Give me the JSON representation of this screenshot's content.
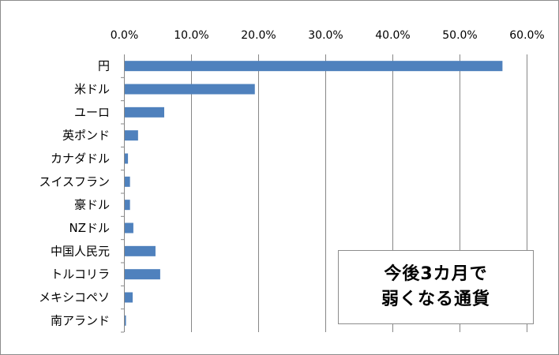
{
  "colors": {
    "bar": "#4f81bd",
    "grid": "#878787",
    "axis": "#878787"
  },
  "chart_data": {
    "type": "bar",
    "orientation": "horizontal",
    "title_lines": [
      "今後3カ月で",
      "弱くなる通貨"
    ],
    "xlabel": "",
    "ylabel": "",
    "xlim": [
      0,
      60
    ],
    "x_ticks": [
      "0.0%",
      "10.0%",
      "20.0%",
      "30.0%",
      "40.0%",
      "50.0%",
      "60.0%"
    ],
    "x_axis_position": "top",
    "grid": true,
    "legend": "none",
    "categories": [
      "円",
      "米ドル",
      "ユーロ",
      "英ポンド",
      "カナダドル",
      "スイスフラン",
      "豪ドル",
      "NZドル",
      "中国人民元",
      "トルコリラ",
      "メキシコペソ",
      "南アランド"
    ],
    "values": [
      56.4,
      19.5,
      6.0,
      2.1,
      0.6,
      0.9,
      0.9,
      1.4,
      4.7,
      5.4,
      1.3,
      0.3
    ]
  }
}
